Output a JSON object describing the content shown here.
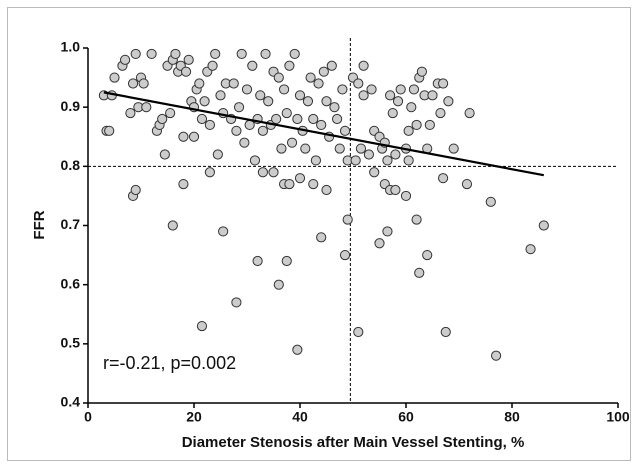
{
  "chart_data": {
    "type": "scatter",
    "x_label": "Diameter Stenosis after Main Vessel Stenting, %",
    "y_label": "FFR",
    "annotation": "r=-0.21, p=0.002",
    "xlim": [
      0,
      100
    ],
    "xticks": [
      0,
      20,
      40,
      60,
      80,
      100
    ],
    "ylim": [
      0.4,
      1
    ],
    "yticks": [
      0.4,
      0.5,
      0.6,
      0.7,
      0.8,
      0.9,
      {
        "value": 1,
        "label": "1.0"
      }
    ],
    "color": "#cccccc",
    "x": [
      8.5,
      9,
      16,
      18,
      21.5,
      23,
      25.5,
      28,
      32,
      33,
      35,
      36,
      37,
      37.5,
      38,
      39.5,
      40,
      42.5,
      44,
      45,
      48.5,
      49,
      51,
      54,
      55,
      56,
      56.5,
      57,
      58,
      60,
      60.5,
      62,
      62.5,
      64,
      67,
      67.5,
      71.5,
      76,
      77,
      83.5,
      86,
      3,
      3.5,
      4,
      4.5,
      5,
      6.5,
      7,
      8,
      8.5,
      9,
      9.5,
      10,
      10.5,
      11,
      12,
      13,
      13.5,
      14,
      14.5,
      15,
      15.5,
      16,
      16.5,
      17,
      17.5,
      18,
      18.5,
      19,
      19.5,
      20,
      20,
      20.5,
      21,
      21.5,
      22,
      22.5,
      23,
      23.5,
      24,
      24.5,
      25,
      25.5,
      26,
      27,
      27.5,
      28,
      28.5,
      29,
      29.5,
      30,
      30.5,
      31,
      31.5,
      32,
      32.5,
      33,
      33.5,
      34,
      34.5,
      35,
      35.5,
      36,
      36.5,
      37,
      37.5,
      38,
      38.5,
      39,
      39.5,
      40,
      40.5,
      41,
      41.5,
      42,
      42.5,
      43,
      43.5,
      44,
      44.5,
      45,
      45.5,
      46,
      46.5,
      47,
      47.5,
      48,
      48.5,
      49,
      50,
      50.5,
      51,
      51.5,
      52,
      52,
      53,
      53.5,
      54,
      55,
      55.5,
      56,
      56.5,
      57,
      57.5,
      58,
      58.5,
      59,
      60,
      60.5,
      61,
      61.5,
      62,
      62.5,
      63,
      63.5,
      64,
      64.5,
      65,
      66,
      66.5,
      67,
      68,
      69,
      72
    ],
    "values": [
      0.75,
      0.76,
      0.7,
      0.77,
      0.53,
      0.79,
      0.69,
      0.57,
      0.64,
      0.79,
      0.79,
      0.6,
      0.77,
      0.64,
      0.77,
      0.49,
      0.78,
      0.77,
      0.68,
      0.76,
      0.65,
      0.71,
      0.52,
      0.79,
      0.67,
      0.77,
      0.69,
      0.76,
      0.76,
      0.75,
      0.81,
      0.71,
      0.62,
      0.65,
      0.78,
      0.52,
      0.77,
      0.74,
      0.48,
      0.66,
      0.7,
      0.92,
      0.86,
      0.86,
      0.92,
      0.95,
      0.97,
      0.98,
      0.89,
      0.94,
      0.99,
      0.9,
      0.95,
      0.94,
      0.9,
      0.99,
      0.86,
      0.87,
      0.88,
      0.82,
      0.97,
      0.89,
      0.98,
      0.99,
      0.96,
      0.97,
      0.85,
      0.96,
      0.98,
      0.91,
      0.9,
      0.85,
      0.93,
      0.94,
      0.88,
      0.91,
      0.96,
      0.87,
      0.97,
      0.99,
      0.82,
      0.92,
      0.89,
      0.94,
      0.88,
      0.94,
      0.86,
      0.9,
      0.99,
      0.84,
      0.93,
      0.87,
      0.97,
      0.81,
      0.88,
      0.92,
      0.86,
      0.99,
      0.91,
      0.87,
      0.96,
      0.88,
      0.95,
      0.83,
      0.93,
      0.89,
      0.97,
      0.84,
      0.99,
      0.88,
      0.92,
      0.86,
      0.83,
      0.91,
      0.95,
      0.88,
      0.81,
      0.94,
      0.87,
      0.96,
      0.91,
      0.85,
      0.97,
      0.9,
      0.88,
      0.83,
      0.93,
      0.86,
      0.81,
      0.95,
      0.81,
      0.94,
      0.83,
      0.92,
      0.97,
      0.82,
      0.93,
      0.86,
      0.85,
      0.83,
      0.84,
      0.81,
      0.92,
      0.89,
      0.82,
      0.91,
      0.93,
      0.83,
      0.86,
      0.9,
      0.93,
      0.87,
      0.95,
      0.96,
      0.92,
      0.83,
      0.87,
      0.92,
      0.94,
      0.89,
      0.94,
      0.91,
      0.83,
      0.89
    ],
    "regression": {
      "x": [
        3,
        86
      ],
      "y": [
        0.925,
        0.785
      ]
    },
    "hlines": [
      0.8
    ],
    "vlines": [
      49.5
    ]
  }
}
